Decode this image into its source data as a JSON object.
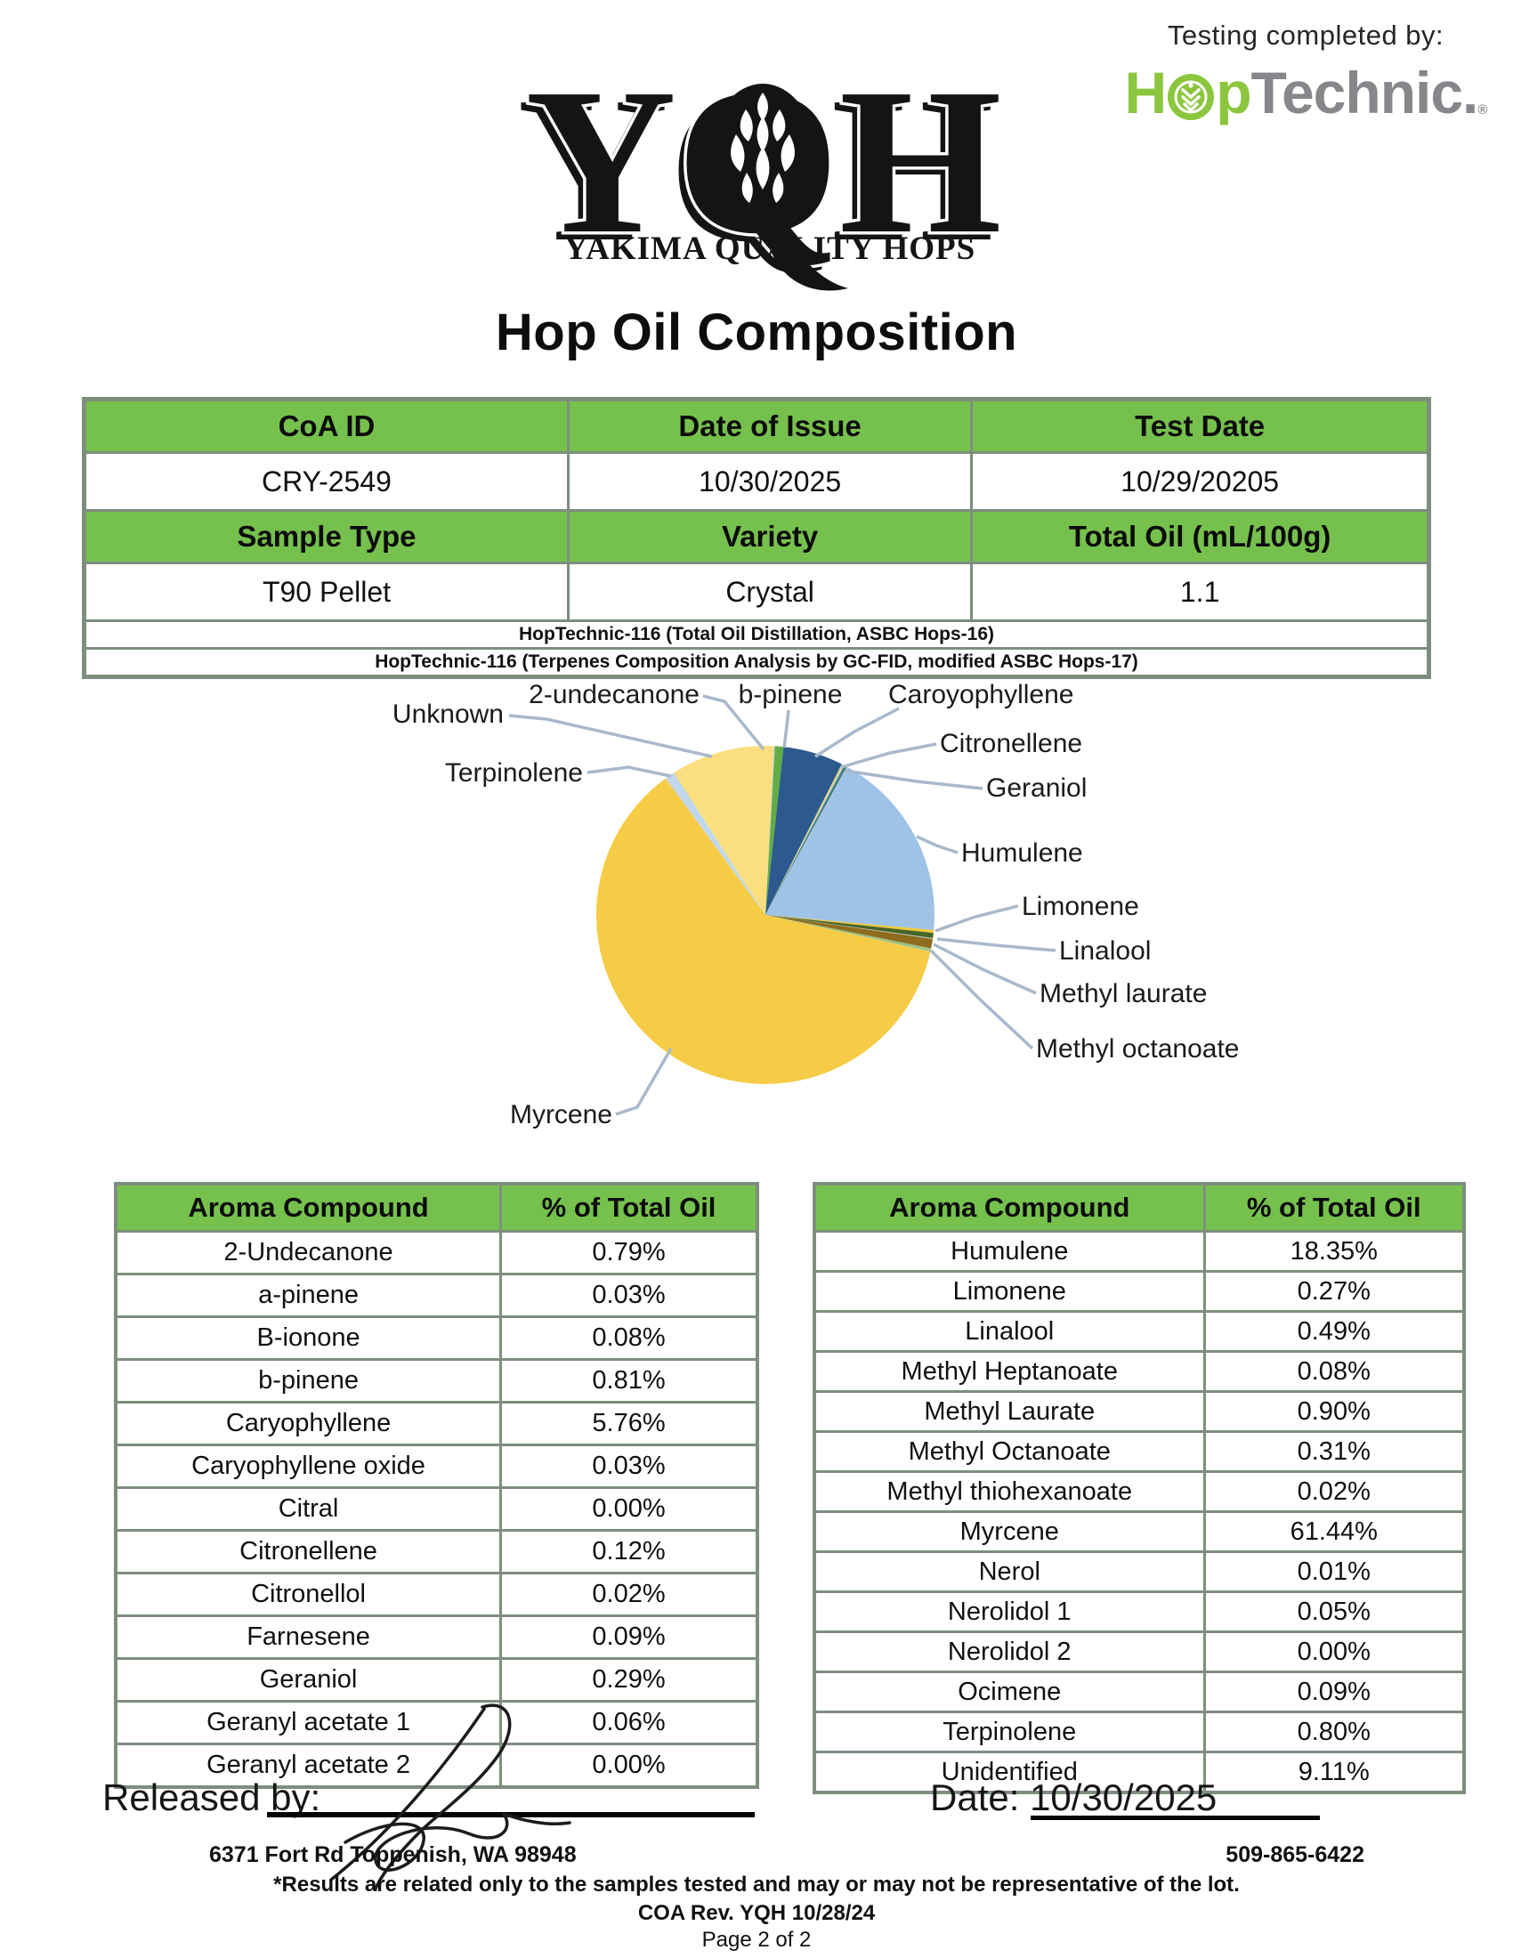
{
  "header": {
    "logo_text": "YQH",
    "logo_subtext": "YAKIMA QUALITY HOPS",
    "testing_completed_by": "Testing completed by:",
    "lab_logo": {
      "green_left": "H",
      "green_right": "p",
      "gray_part": "Technic.",
      "registered": "®"
    }
  },
  "title": "Hop Oil Composition",
  "info_table": {
    "headers1": [
      "CoA ID",
      "Date of Issue",
      "Test Date"
    ],
    "values1": [
      "CRY-2549",
      "10/30/2025",
      "10/29/20205"
    ],
    "headers2": [
      "Sample Type",
      "Variety",
      "Total Oil (mL/100g)"
    ],
    "values2": [
      "T90 Pellet",
      "Crystal",
      "1.1"
    ],
    "methods": [
      "HopTechnic-116 (Total Oil Distillation, ASBC Hops-16)",
      "HopTechnic-116 (Terpenes Composition Analysis by GC-FID, modified ASBC Hops-17)"
    ]
  },
  "chart_data": {
    "type": "pie",
    "title": "",
    "unit": "% of total oil",
    "layout": {
      "start_angle": "12-oclock",
      "direction": "clockwise",
      "legend": false,
      "labels": "callouts-with-leader-lines"
    },
    "slices": [
      {
        "label": "2-Undecanone",
        "value": 0.79,
        "color": "#FBDF7E"
      },
      {
        "label": "a-pinene",
        "value": 0.03,
        "color": "#C9CED4"
      },
      {
        "label": "B-ionone",
        "value": 0.08,
        "color": "#C9CED4"
      },
      {
        "label": "b-pinene",
        "value": 0.81,
        "color": "#61AE45"
      },
      {
        "label": "Caryophyllene",
        "value": 5.76,
        "color": "#2C5A8E"
      },
      {
        "label": "Caryophyllene oxide",
        "value": 0.03,
        "color": "#C9CED4"
      },
      {
        "label": "Citral",
        "value": 0.0,
        "color": "#C9CED4"
      },
      {
        "label": "Citronellene",
        "value": 0.12,
        "color": "#E9D34F"
      },
      {
        "label": "Citronellol",
        "value": 0.02,
        "color": "#C9CED4"
      },
      {
        "label": "Farnesene",
        "value": 0.09,
        "color": "#C9CED4"
      },
      {
        "label": "Geraniol",
        "value": 0.29,
        "color": "#3F8189"
      },
      {
        "label": "Geranyl acetate 1",
        "value": 0.06,
        "color": "#C9CED4"
      },
      {
        "label": "Geranyl acetate 2",
        "value": 0.0,
        "color": "#C9CED4"
      },
      {
        "label": "Humulene",
        "value": 18.35,
        "color": "#9FC3E6"
      },
      {
        "label": "Limonene",
        "value": 0.27,
        "color": "#F1C83B"
      },
      {
        "label": "Linalool",
        "value": 0.49,
        "color": "#466527"
      },
      {
        "label": "Methyl Heptanoate",
        "value": 0.08,
        "color": "#C9CED4"
      },
      {
        "label": "Methyl Laurate",
        "value": 0.9,
        "color": "#8E6C1E"
      },
      {
        "label": "Methyl Octanoate",
        "value": 0.31,
        "color": "#9DC383"
      },
      {
        "label": "Methyl thiohexanoate",
        "value": 0.02,
        "color": "#C9CED4"
      },
      {
        "label": "Myrcene",
        "value": 61.44,
        "color": "#F6CC46"
      },
      {
        "label": "Nerol",
        "value": 0.01,
        "color": "#C9CED4"
      },
      {
        "label": "Nerolidol 1",
        "value": 0.05,
        "color": "#C9CED4"
      },
      {
        "label": "Nerolidol 2",
        "value": 0.0,
        "color": "#C9CED4"
      },
      {
        "label": "Ocimene",
        "value": 0.09,
        "color": "#C9CED4"
      },
      {
        "label": "Terpinolene",
        "value": 0.8,
        "color": "#BFD8EC"
      },
      {
        "label": "Unidentified",
        "value": 9.11,
        "color": "#FBDF7E"
      }
    ],
    "callouts": [
      {
        "text": "Unknown",
        "slice": "Unidentified"
      },
      {
        "text": "2-undecanone",
        "slice": "2-Undecanone"
      },
      {
        "text": "b-pinene",
        "slice": "b-pinene"
      },
      {
        "text": "Caroyophyllene",
        "slice": "Caryophyllene"
      },
      {
        "text": "Citronellene",
        "slice": "Citronellene"
      },
      {
        "text": "Geraniol",
        "slice": "Geraniol"
      },
      {
        "text": "Humulene",
        "slice": "Humulene"
      },
      {
        "text": "Limonene",
        "slice": "Limonene"
      },
      {
        "text": "Linalool",
        "slice": "Linalool"
      },
      {
        "text": "Methyl laurate",
        "slice": "Methyl Laurate"
      },
      {
        "text": "Methyl octanoate",
        "slice": "Methyl Octanoate"
      },
      {
        "text": "Myrcene",
        "slice": "Myrcene"
      },
      {
        "text": "Terpinolene",
        "slice": "Terpinolene"
      }
    ]
  },
  "compound_tables": {
    "col_headers": [
      "Aroma Compound",
      "% of Total Oil"
    ],
    "left_rows": [
      [
        "2-Undecanone",
        "0.79%"
      ],
      [
        "a-pinene",
        "0.03%"
      ],
      [
        "B-ionone",
        "0.08%"
      ],
      [
        "b-pinene",
        "0.81%"
      ],
      [
        "Caryophyllene",
        "5.76%"
      ],
      [
        "Caryophyllene oxide",
        "0.03%"
      ],
      [
        "Citral",
        "0.00%"
      ],
      [
        "Citronellene",
        "0.12%"
      ],
      [
        "Citronellol",
        "0.02%"
      ],
      [
        "Farnesene",
        "0.09%"
      ],
      [
        "Geraniol",
        "0.29%"
      ],
      [
        "Geranyl acetate 1",
        "0.06%"
      ],
      [
        "Geranyl acetate 2",
        "0.00%"
      ]
    ],
    "right_rows": [
      [
        "Humulene",
        "18.35%"
      ],
      [
        "Limonene",
        "0.27%"
      ],
      [
        "Linalool",
        "0.49%"
      ],
      [
        "Methyl Heptanoate",
        "0.08%"
      ],
      [
        "Methyl Laurate",
        "0.90%"
      ],
      [
        "Methyl Octanoate",
        "0.31%"
      ],
      [
        "Methyl thiohexanoate",
        "0.02%"
      ],
      [
        "Myrcene",
        "61.44%"
      ],
      [
        "Nerol",
        "0.01%"
      ],
      [
        "Nerolidol 1",
        "0.05%"
      ],
      [
        "Nerolidol 2",
        "0.00%"
      ],
      [
        "Ocimene",
        "0.09%"
      ],
      [
        "Terpinolene",
        "0.80%"
      ],
      [
        "Unidentified",
        "9.11%"
      ]
    ]
  },
  "signature_block": {
    "released_by_label": "Released by:",
    "date_label": "Date:",
    "date_value": "10/30/2025"
  },
  "footer": {
    "address": "6371 Fort Rd Toppenish, WA 98948",
    "phone": "509-865-6422",
    "disclaimer": "*Results are related only to the samples tested and may or may not be representative of the lot.",
    "revision": "COA Rev. YQH 10/28/24",
    "page": "Page 2 of 2"
  },
  "colors": {
    "header_green": "#76C14E",
    "table_border": "#7E8E7E",
    "leader_line": "#A9B9CB",
    "hoptechnic_green": "#8CC63E",
    "hoptechnic_gray": "#85878A"
  }
}
